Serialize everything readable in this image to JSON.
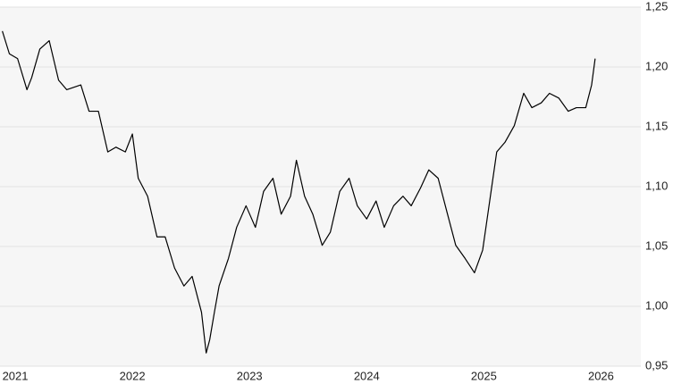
{
  "chart_data": {
    "type": "line",
    "x": [
      2020.89,
      2020.95,
      2021.02,
      2021.1,
      2021.14,
      2021.21,
      2021.29,
      2021.37,
      2021.44,
      2021.56,
      2021.63,
      2021.71,
      2021.79,
      2021.86,
      2021.94,
      2022.0,
      2022.05,
      2022.13,
      2022.21,
      2022.28,
      2022.36,
      2022.44,
      2022.51,
      2022.59,
      2022.63,
      2022.66,
      2022.7,
      2022.74,
      2022.82,
      2022.89,
      2022.97,
      2023.05,
      2023.12,
      2023.2,
      2023.27,
      2023.35,
      2023.4,
      2023.47,
      2023.54,
      2023.62,
      2023.69,
      2023.77,
      2023.85,
      2023.92,
      2024.0,
      2024.08,
      2024.15,
      2024.23,
      2024.31,
      2024.38,
      2024.46,
      2024.53,
      2024.61,
      2024.69,
      2024.76,
      2024.84,
      2024.92,
      2024.99,
      2025.05,
      2025.11,
      2025.18,
      2025.26,
      2025.34,
      2025.41,
      2025.49,
      2025.56,
      2025.64,
      2025.72,
      2025.79,
      2025.87,
      2025.92,
      2025.95
    ],
    "series": [
      {
        "color": "#000000",
        "values": [
          1.23,
          1.211,
          1.207,
          1.181,
          1.191,
          1.215,
          1.222,
          1.189,
          1.181,
          1.185,
          1.163,
          1.163,
          1.129,
          1.133,
          1.129,
          1.144,
          1.107,
          1.092,
          1.058,
          1.058,
          1.032,
          1.017,
          1.025,
          0.995,
          0.961,
          0.972,
          0.995,
          1.017,
          1.04,
          1.066,
          1.084,
          1.066,
          1.096,
          1.107,
          1.077,
          1.092,
          1.122,
          1.092,
          1.077,
          1.051,
          1.062,
          1.096,
          1.107,
          1.084,
          1.073,
          1.088,
          1.066,
          1.084,
          1.092,
          1.084,
          1.099,
          1.114,
          1.107,
          1.077,
          1.051,
          1.04,
          1.028,
          1.047,
          1.088,
          1.129,
          1.137,
          1.151,
          1.178,
          1.166,
          1.17,
          1.178,
          1.174,
          1.163,
          1.166,
          1.166,
          1.185,
          1.207
        ]
      }
    ],
    "xlim": [
      2020.87,
      2026.34
    ],
    "xticks": [
      2021,
      2022,
      2023,
      2024,
      2025,
      2026
    ],
    "ylim": [
      0.95,
      1.25
    ],
    "yticks": [
      {
        "value": 0.95,
        "label": "0,95"
      },
      {
        "value": 1.0,
        "label": "1,00"
      },
      {
        "value": 1.05,
        "label": "1,05"
      },
      {
        "value": 1.1,
        "label": "1,10"
      },
      {
        "value": 1.15,
        "label": "1,15"
      },
      {
        "value": 1.2,
        "label": "1,20"
      },
      {
        "value": 1.25,
        "label": "1,25"
      }
    ],
    "grid": true
  }
}
